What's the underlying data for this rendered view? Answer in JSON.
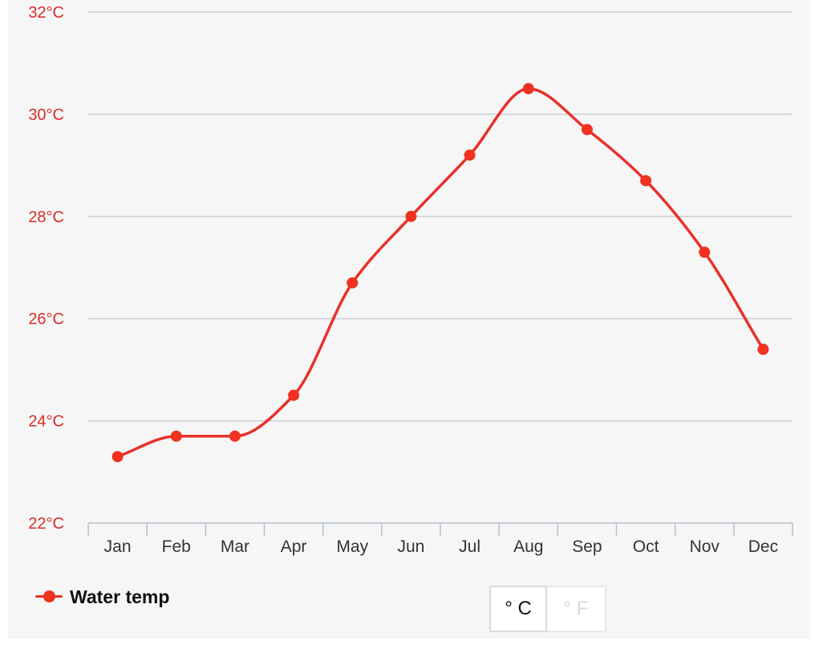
{
  "chart_data": {
    "type": "line",
    "categories": [
      "Jan",
      "Feb",
      "Mar",
      "Apr",
      "May",
      "Jun",
      "Jul",
      "Aug",
      "Sep",
      "Oct",
      "Nov",
      "Dec"
    ],
    "series": [
      {
        "name": "Water temp",
        "values": [
          23.3,
          23.7,
          23.7,
          24.5,
          26.7,
          28.0,
          29.2,
          30.5,
          29.7,
          28.7,
          27.3,
          25.4
        ],
        "color": "#e8312a"
      }
    ],
    "ylim": [
      22,
      32
    ],
    "yticks": [
      22,
      24,
      26,
      28,
      30,
      32
    ],
    "ytick_labels": [
      "22°C",
      "24°C",
      "26°C",
      "28°C",
      "30°C",
      "32°C"
    ],
    "grid": true,
    "legend_position": "bottom-left",
    "axis_label_color": "#d92b24"
  },
  "legend": {
    "label": "Water temp"
  },
  "unit_toggle": {
    "celsius_label": "° C",
    "fahrenheit_label": "° F",
    "selected": "celsius"
  }
}
